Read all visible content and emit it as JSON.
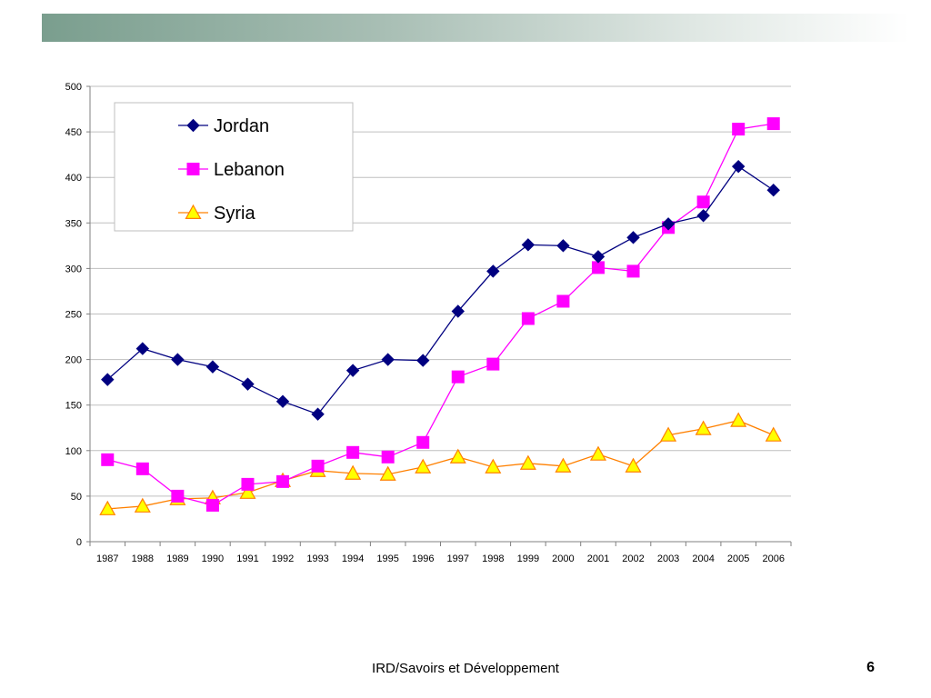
{
  "slide": {
    "footer": "IRD/Savoirs et Développement",
    "page_number": "6",
    "top_bar_colors": [
      "#7a9e8e",
      "#ffffff"
    ]
  },
  "chart_data": {
    "type": "line",
    "categories": [
      "1987",
      "1988",
      "1989",
      "1990",
      "1991",
      "1992",
      "1993",
      "1994",
      "1995",
      "1996",
      "1997",
      "1998",
      "1999",
      "2000",
      "2001",
      "2002",
      "2003",
      "2004",
      "2005",
      "2006"
    ],
    "ylim": [
      0,
      500
    ],
    "yticks": [
      0,
      50,
      100,
      150,
      200,
      250,
      300,
      350,
      400,
      450,
      500
    ],
    "grid": true,
    "legend_position": "top-left",
    "series": [
      {
        "name": "Jordan",
        "color": "#000080",
        "marker": "diamond",
        "values": [
          178,
          212,
          200,
          192,
          173,
          154,
          140,
          188,
          200,
          199,
          253,
          297,
          326,
          325,
          313,
          334,
          349,
          358,
          412,
          386
        ]
      },
      {
        "name": "Lebanon",
        "color": "#ff00ff",
        "marker": "square",
        "values": [
          90,
          80,
          50,
          40,
          63,
          66,
          83,
          98,
          93,
          109,
          181,
          195,
          245,
          264,
          301,
          297,
          345,
          373,
          453,
          459
        ]
      },
      {
        "name": "Syria",
        "color": "#ff8000",
        "fill": "#ffff00",
        "marker": "triangle",
        "values": [
          36,
          39,
          47,
          48,
          54,
          67,
          78,
          75,
          74,
          82,
          93,
          82,
          86,
          83,
          96,
          83,
          117,
          124,
          133,
          117
        ]
      }
    ]
  }
}
